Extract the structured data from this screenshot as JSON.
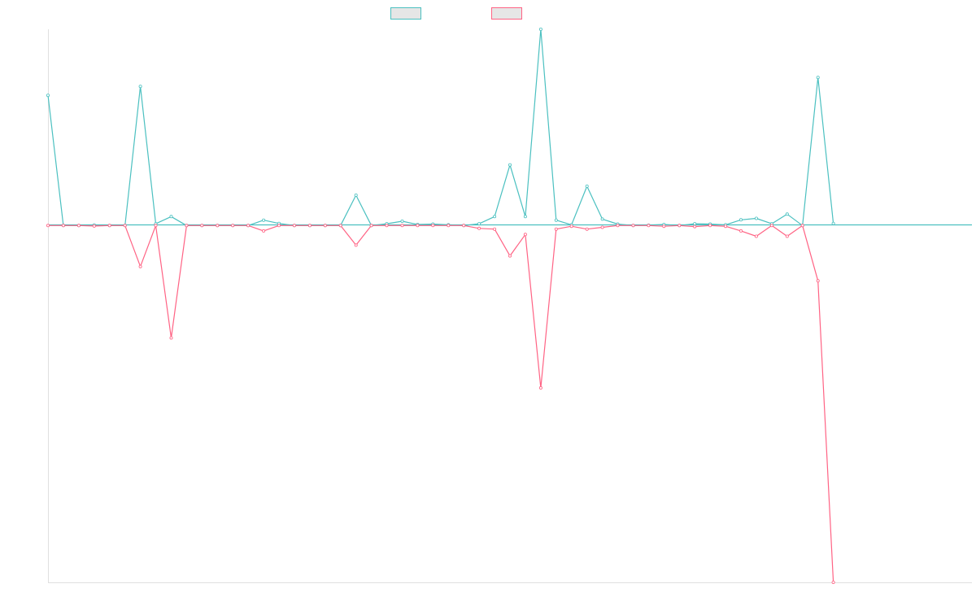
{
  "chart_data": {
    "type": "line",
    "title": "",
    "xlabel": "",
    "ylabel": "",
    "ylim": [
      -100,
      55
    ],
    "grid": false,
    "legend": {
      "placement": "top-center"
    },
    "x": [
      0,
      5,
      10,
      15,
      20,
      25,
      30,
      35,
      40,
      45,
      50,
      55,
      60,
      65,
      70,
      75,
      80,
      85,
      90,
      95,
      100,
      105,
      110,
      115,
      120,
      125,
      130,
      135,
      140,
      145,
      150,
      155,
      160,
      165,
      170,
      175,
      180,
      185,
      190,
      195,
      200,
      205,
      210,
      215,
      220,
      225,
      230,
      235,
      240,
      245,
      250,
      255
    ],
    "series": [
      {
        "name": "",
        "color": "#4bc0c0",
        "values": [
          36.5,
          0,
          0,
          0.15,
          0,
          0,
          39,
          0.5,
          2.5,
          0,
          0,
          0,
          0,
          0,
          1.5,
          0.6,
          0,
          0,
          0,
          0,
          8.5,
          0,
          0.5,
          1.2,
          0.3,
          0.4,
          0.2,
          0,
          0.5,
          2.5,
          17,
          2.5,
          55,
          1.5,
          0.2,
          11,
          1.8,
          0.4,
          0,
          0.1,
          0.3,
          0,
          0.5,
          0.4,
          0.2,
          1.6,
          2,
          0.5,
          3.2,
          0,
          41.5,
          0.6
        ]
      },
      {
        "name": "",
        "color": "#ff6384",
        "values": [
          0,
          0,
          0,
          -0.15,
          0,
          0,
          -11.5,
          0,
          -31.5,
          0,
          0,
          0,
          0,
          0,
          -1.5,
          0,
          0,
          0,
          0,
          0,
          -5.5,
          0,
          0,
          0,
          0,
          0,
          0,
          0,
          -0.8,
          -1,
          -8.5,
          -2.5,
          -45.5,
          -1,
          -0.2,
          -1,
          -0.5,
          0,
          0,
          0,
          -0.2,
          0,
          -0.3,
          0,
          -0.2,
          -1.5,
          -3,
          0,
          -3,
          0,
          -15.5,
          -100
        ]
      }
    ]
  }
}
